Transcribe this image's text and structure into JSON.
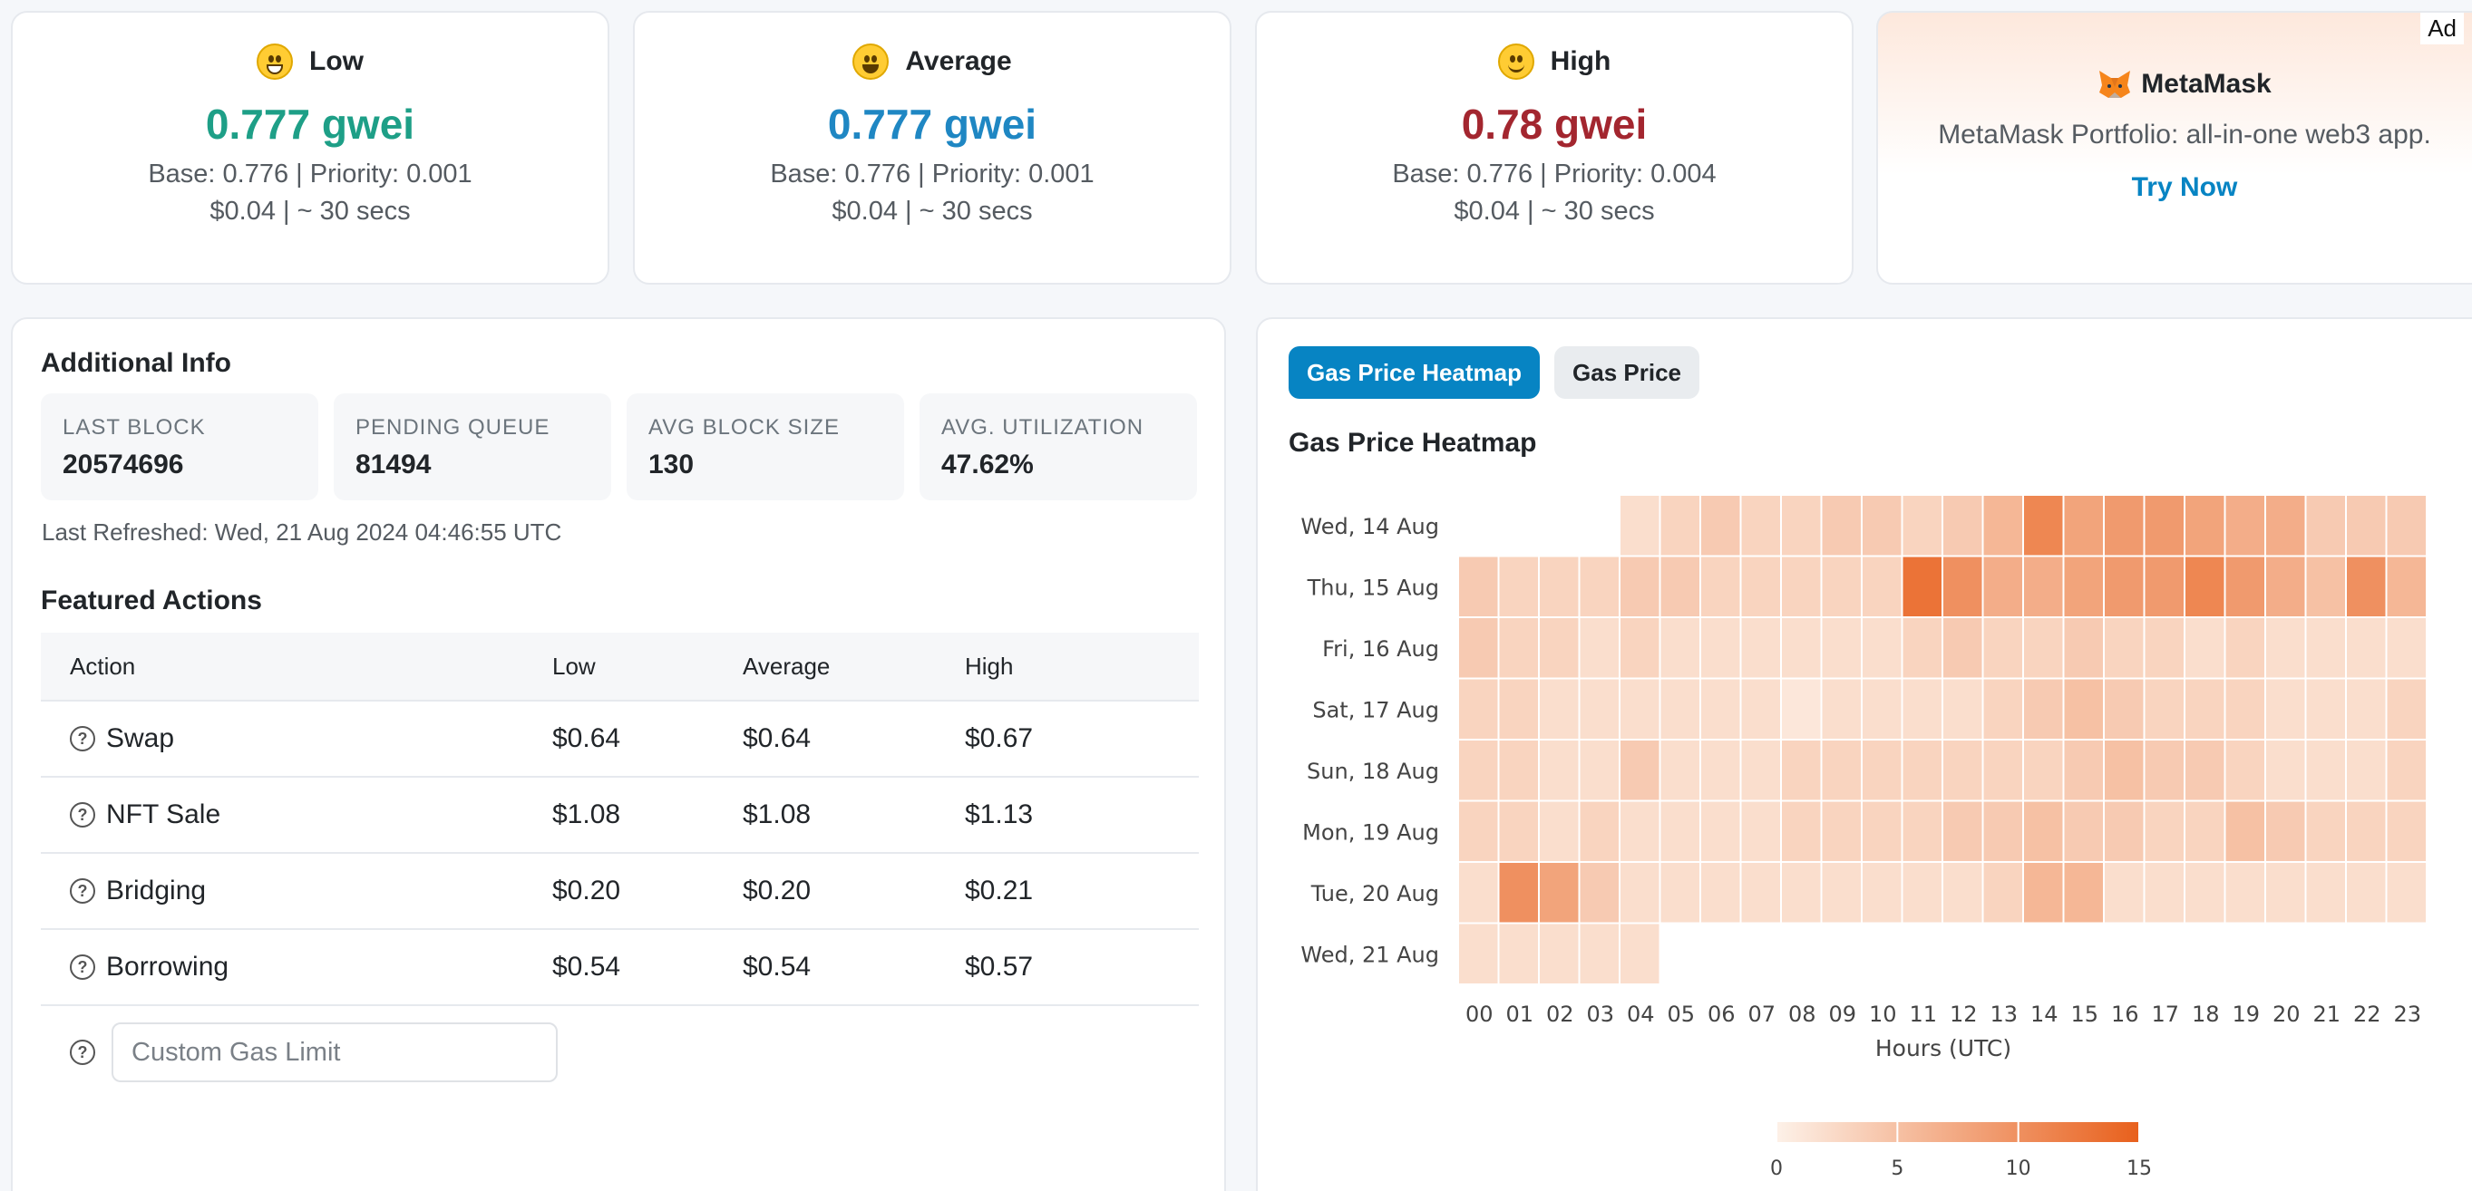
{
  "tiers": [
    {
      "name": "Low",
      "gwei": "0.777 gwei",
      "base_priority": "Base: 0.776 | Priority: 0.001",
      "cost_time": "$0.04 | ~ 30 secs",
      "color": "#1e9f87",
      "emoji": "grin-icon"
    },
    {
      "name": "Average",
      "gwei": "0.777 gwei",
      "base_priority": "Base: 0.776 | Priority: 0.001",
      "cost_time": "$0.04 | ~ 30 secs",
      "color": "#1f87c3",
      "emoji": "smiley-icon"
    },
    {
      "name": "High",
      "gwei": "0.78 gwei",
      "base_priority": "Base: 0.776 | Priority: 0.004",
      "cost_time": "$0.04 | ~ 30 secs",
      "color": "#a3262f",
      "emoji": "smile-icon"
    }
  ],
  "ad": {
    "tag": "Ad",
    "title": "MetaMask",
    "description": "MetaMask Portfolio: all-in-one web3 app.",
    "cta": "Try Now"
  },
  "info": {
    "title": "Additional Info",
    "stats": [
      {
        "label": "LAST BLOCK",
        "value": "20574696"
      },
      {
        "label": "PENDING QUEUE",
        "value": "81494"
      },
      {
        "label": "AVG BLOCK SIZE",
        "value": "130"
      },
      {
        "label": "AVG. UTILIZATION",
        "value": "47.62%"
      }
    ],
    "last_refreshed": "Last Refreshed: Wed, 21 Aug 2024 04:46:55 UTC"
  },
  "actions": {
    "title": "Featured Actions",
    "headers": [
      "Action",
      "Low",
      "Average",
      "High"
    ],
    "rows": [
      {
        "name": "Swap",
        "low": "$0.64",
        "avg": "$0.64",
        "high": "$0.67"
      },
      {
        "name": "NFT Sale",
        "low": "$1.08",
        "avg": "$1.08",
        "high": "$1.13"
      },
      {
        "name": "Bridging",
        "low": "$0.20",
        "avg": "$0.20",
        "high": "$0.21"
      },
      {
        "name": "Borrowing",
        "low": "$0.54",
        "avg": "$0.54",
        "high": "$0.57"
      }
    ],
    "custom_placeholder": "Custom Gas Limit"
  },
  "heatmap_panel": {
    "tabs": [
      "Gas Price Heatmap",
      "Gas Price"
    ],
    "title": "Gas Price Heatmap"
  },
  "chart_data": {
    "type": "heatmap",
    "title": "Gas Price Heatmap",
    "xlabel": "Hours (UTC)",
    "x": [
      "00",
      "01",
      "02",
      "03",
      "04",
      "05",
      "06",
      "07",
      "08",
      "09",
      "10",
      "11",
      "12",
      "13",
      "14",
      "15",
      "16",
      "17",
      "18",
      "19",
      "20",
      "21",
      "22",
      "23"
    ],
    "y": [
      "Wed, 14 Aug",
      "Thu, 15 Aug",
      "Fri, 16 Aug",
      "Sat, 17 Aug",
      "Sun, 18 Aug",
      "Mon, 19 Aug",
      "Tue, 20 Aug",
      "Wed, 21 Aug"
    ],
    "values": [
      [
        null,
        null,
        null,
        null,
        2,
        3,
        4,
        3,
        3,
        4,
        4,
        3,
        4,
        6,
        11,
        8,
        9,
        9,
        8,
        7,
        7,
        4,
        4,
        4
      ],
      [
        4,
        3,
        3,
        3,
        4,
        4,
        3,
        3,
        3,
        3,
        3,
        13,
        10,
        7,
        7,
        8,
        9,
        9,
        11,
        9,
        7,
        5,
        10,
        6
      ],
      [
        4,
        3,
        3,
        2,
        3,
        2,
        2,
        2,
        2,
        2,
        2,
        3,
        4,
        3,
        3,
        4,
        3,
        3,
        2,
        3,
        2,
        2,
        2,
        2
      ],
      [
        3,
        3,
        2,
        2,
        2,
        2,
        2,
        2,
        1,
        2,
        2,
        2,
        2,
        3,
        4,
        5,
        4,
        3,
        3,
        3,
        2,
        2,
        2,
        3
      ],
      [
        3,
        3,
        2,
        2,
        4,
        2,
        2,
        2,
        3,
        3,
        3,
        3,
        3,
        3,
        3,
        4,
        5,
        4,
        4,
        3,
        2,
        2,
        2,
        3
      ],
      [
        3,
        3,
        2,
        3,
        2,
        2,
        2,
        2,
        3,
        3,
        3,
        3,
        4,
        4,
        5,
        4,
        4,
        3,
        3,
        5,
        4,
        3,
        3,
        3
      ],
      [
        2,
        10,
        8,
        4,
        2,
        2,
        2,
        2,
        2,
        2,
        2,
        2,
        2,
        3,
        6,
        6,
        2,
        2,
        2,
        2,
        2,
        2,
        2,
        2
      ],
      [
        2,
        2,
        2,
        2,
        2,
        null,
        null,
        null,
        null,
        null,
        null,
        null,
        null,
        null,
        null,
        null,
        null,
        null,
        null,
        null,
        null,
        null,
        null,
        null
      ]
    ],
    "colorbar": {
      "min": 0,
      "max": 15,
      "ticks": [
        0,
        5,
        10,
        15
      ]
    },
    "colors": {
      "low": "#fdf1e8",
      "high": "#e8601c"
    }
  }
}
